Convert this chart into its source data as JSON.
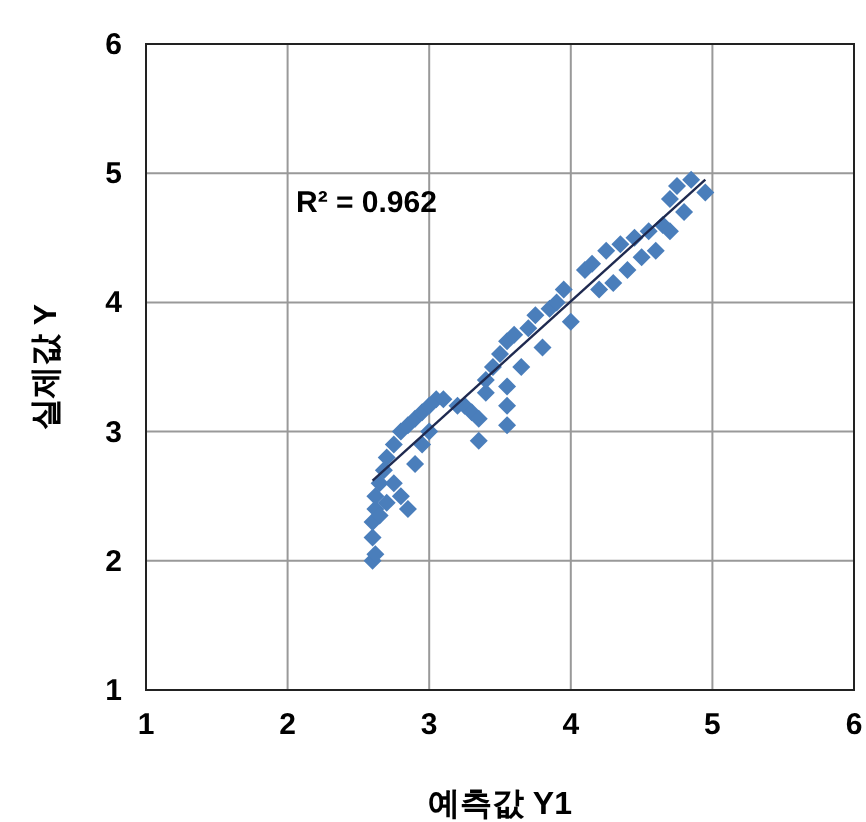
{
  "chart_data": {
    "type": "scatter",
    "xlabel": "예측값 Y1",
    "ylabel": "실제값 Y",
    "annotations": [
      "R² = 0.962"
    ],
    "xlim": [
      1,
      6
    ],
    "ylim": [
      1,
      6
    ],
    "xticks": [
      1,
      2,
      3,
      4,
      5,
      6
    ],
    "yticks": [
      1,
      2,
      3,
      4,
      5,
      6
    ],
    "grid": true,
    "marker": "diamond",
    "series": [
      {
        "color": "#4a7ebb",
        "x": [
          2.6,
          2.62,
          2.6,
          2.6,
          2.62,
          2.62,
          2.65,
          2.68,
          2.7,
          2.75,
          2.8,
          2.85,
          2.9,
          2.95,
          3.0,
          3.05,
          3.1,
          3.2,
          3.25,
          2.75,
          2.8,
          2.85,
          2.9,
          2.7,
          2.65,
          3.0,
          2.95,
          3.3,
          3.35,
          3.35,
          3.55,
          3.55,
          3.4,
          3.4,
          3.45,
          3.5,
          3.55,
          3.6,
          3.7,
          3.75,
          3.85,
          3.9,
          3.95,
          4.0,
          3.8,
          3.65,
          3.55,
          4.1,
          4.15,
          4.25,
          4.35,
          4.45,
          4.55,
          4.65,
          4.7,
          4.75,
          4.85,
          4.95,
          4.8,
          4.6,
          4.5,
          4.3,
          4.2,
          4.4,
          4.7
        ],
        "values": [
          2.0,
          2.05,
          2.18,
          2.3,
          2.4,
          2.5,
          2.6,
          2.7,
          2.8,
          2.9,
          3.0,
          3.05,
          3.1,
          3.15,
          3.2,
          3.25,
          3.25,
          3.2,
          3.2,
          2.6,
          2.5,
          2.4,
          2.75,
          2.45,
          2.35,
          3.0,
          2.9,
          3.15,
          3.1,
          2.93,
          3.05,
          3.2,
          3.3,
          3.4,
          3.5,
          3.6,
          3.7,
          3.75,
          3.8,
          3.9,
          3.95,
          4.0,
          4.1,
          3.85,
          3.65,
          3.5,
          3.35,
          4.25,
          4.3,
          4.4,
          4.45,
          4.5,
          4.55,
          4.6,
          4.8,
          4.9,
          4.95,
          4.85,
          4.7,
          4.4,
          4.35,
          4.15,
          4.1,
          4.25,
          4.55
        ]
      },
      {
        "type": "line",
        "color": "#1f2a50",
        "x": [
          2.6,
          4.95
        ],
        "values": [
          2.62,
          4.95
        ],
        "marker": "none"
      }
    ]
  }
}
